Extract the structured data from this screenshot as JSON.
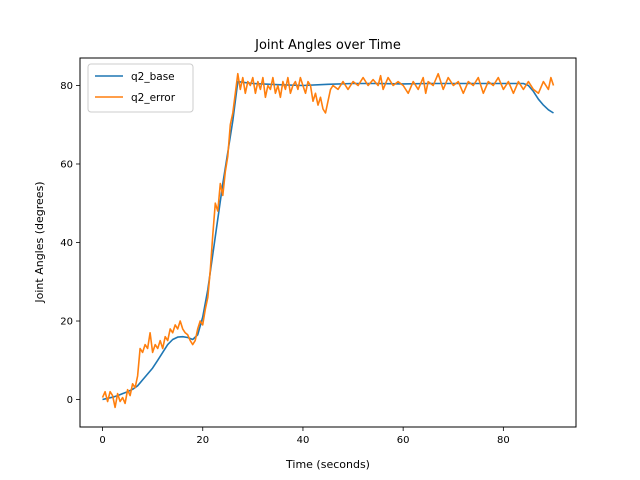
{
  "chart_data": {
    "type": "line",
    "title": "Joint Angles over Time",
    "xlabel": "Time (seconds)",
    "ylabel": "Joint Angles (degrees)",
    "xlim": [
      -4.5,
      94.5
    ],
    "ylim": [
      -7,
      87
    ],
    "xticks": [
      0,
      20,
      40,
      60,
      80
    ],
    "yticks": [
      0,
      20,
      40,
      60,
      80
    ],
    "grid": false,
    "legend_position": "top-left",
    "series": [
      {
        "name": "q2_base",
        "color": "#1f77b4",
        "points": [
          [
            0,
            0
          ],
          [
            1,
            0.3
          ],
          [
            2,
            0.6
          ],
          [
            3,
            1.0
          ],
          [
            4,
            1.5
          ],
          [
            5,
            2.0
          ],
          [
            6,
            2.6
          ],
          [
            7,
            3.5
          ],
          [
            8,
            5.0
          ],
          [
            9,
            6.5
          ],
          [
            10,
            8.0
          ],
          [
            11,
            10.0
          ],
          [
            12,
            12.0
          ],
          [
            13,
            14.0
          ],
          [
            14,
            15.3
          ],
          [
            15,
            15.9
          ],
          [
            16,
            16.0
          ],
          [
            17,
            15.8
          ],
          [
            18,
            15.3
          ],
          [
            19,
            16.5
          ],
          [
            20,
            21.0
          ],
          [
            21,
            28.0
          ],
          [
            22,
            37.0
          ],
          [
            23,
            46.0
          ],
          [
            24,
            55.0
          ],
          [
            25,
            63.0
          ],
          [
            26,
            71.0
          ],
          [
            27,
            81.0
          ],
          [
            28,
            80.8
          ],
          [
            30,
            80.5
          ],
          [
            35,
            80.2
          ],
          [
            40,
            80.0
          ],
          [
            45,
            80.3
          ],
          [
            50,
            80.5
          ],
          [
            55,
            80.5
          ],
          [
            60,
            80.4
          ],
          [
            65,
            80.5
          ],
          [
            70,
            80.5
          ],
          [
            75,
            80.5
          ],
          [
            80,
            80.5
          ],
          [
            84,
            80.5
          ],
          [
            85,
            80.0
          ],
          [
            86,
            78.5
          ],
          [
            87,
            76.5
          ],
          [
            88,
            75.0
          ],
          [
            89,
            73.8
          ],
          [
            90,
            73.0
          ]
        ]
      },
      {
        "name": "q2_error",
        "color": "#ff7f0e",
        "points": [
          [
            0,
            0.5
          ],
          [
            0.5,
            2
          ],
          [
            1,
            -0.5
          ],
          [
            1.5,
            2
          ],
          [
            2,
            1
          ],
          [
            2.5,
            -2
          ],
          [
            3,
            1.5
          ],
          [
            3.5,
            -0.5
          ],
          [
            4,
            0.5
          ],
          [
            4.5,
            -1
          ],
          [
            5,
            2.5
          ],
          [
            5.5,
            1
          ],
          [
            6,
            4
          ],
          [
            6.5,
            3
          ],
          [
            7,
            6
          ],
          [
            7.5,
            13
          ],
          [
            8,
            12
          ],
          [
            8.5,
            14
          ],
          [
            9,
            13
          ],
          [
            9.5,
            17
          ],
          [
            10,
            12
          ],
          [
            10.5,
            14
          ],
          [
            11,
            13
          ],
          [
            11.5,
            15
          ],
          [
            12,
            13
          ],
          [
            12.5,
            16
          ],
          [
            13,
            15
          ],
          [
            13.5,
            18
          ],
          [
            14,
            17
          ],
          [
            14.5,
            19
          ],
          [
            15,
            18
          ],
          [
            15.5,
            20
          ],
          [
            16,
            18
          ],
          [
            16.5,
            17
          ],
          [
            17,
            16.5
          ],
          [
            17.5,
            15
          ],
          [
            18,
            14
          ],
          [
            18.5,
            15
          ],
          [
            19,
            18
          ],
          [
            19.5,
            20
          ],
          [
            20,
            19
          ],
          [
            20.5,
            23
          ],
          [
            21,
            26
          ],
          [
            21.5,
            33
          ],
          [
            22,
            42
          ],
          [
            22.5,
            50
          ],
          [
            23,
            48
          ],
          [
            23.5,
            55
          ],
          [
            24,
            52
          ],
          [
            24.5,
            58
          ],
          [
            25,
            62
          ],
          [
            25.5,
            70
          ],
          [
            26,
            73
          ],
          [
            26.5,
            78
          ],
          [
            27,
            83
          ],
          [
            27.5,
            79
          ],
          [
            28,
            82
          ],
          [
            28.5,
            78
          ],
          [
            29,
            81
          ],
          [
            29.5,
            80
          ],
          [
            30,
            82
          ],
          [
            30.5,
            78
          ],
          [
            31,
            81
          ],
          [
            31.5,
            79
          ],
          [
            32,
            82
          ],
          [
            32.5,
            77
          ],
          [
            33,
            80
          ],
          [
            33.5,
            79
          ],
          [
            34,
            82
          ],
          [
            34.5,
            78
          ],
          [
            35,
            80
          ],
          [
            35.5,
            77
          ],
          [
            36,
            81
          ],
          [
            36.5,
            79
          ],
          [
            37,
            82
          ],
          [
            37.5,
            78
          ],
          [
            38,
            80
          ],
          [
            38.5,
            81
          ],
          [
            39,
            79
          ],
          [
            39.5,
            82
          ],
          [
            40,
            80
          ],
          [
            40.5,
            78
          ],
          [
            41,
            81
          ],
          [
            41.5,
            80
          ],
          [
            42,
            76
          ],
          [
            42.5,
            78
          ],
          [
            43,
            75
          ],
          [
            43.5,
            77
          ],
          [
            44,
            74
          ],
          [
            44.5,
            73
          ],
          [
            45,
            76
          ],
          [
            45.5,
            79
          ],
          [
            46,
            80
          ],
          [
            47,
            79
          ],
          [
            48,
            81
          ],
          [
            49,
            79
          ],
          [
            50,
            81
          ],
          [
            51,
            80
          ],
          [
            52,
            82
          ],
          [
            53,
            80
          ],
          [
            54,
            81.5
          ],
          [
            55,
            80
          ],
          [
            55.5,
            82.5
          ],
          [
            56,
            79
          ],
          [
            57,
            82
          ],
          [
            58,
            80
          ],
          [
            59,
            81
          ],
          [
            60,
            80
          ],
          [
            61,
            78
          ],
          [
            62,
            81
          ],
          [
            63,
            79
          ],
          [
            64,
            82
          ],
          [
            64.5,
            78
          ],
          [
            65,
            81
          ],
          [
            66,
            80
          ],
          [
            67,
            83
          ],
          [
            68,
            79
          ],
          [
            69,
            82
          ],
          [
            70,
            80
          ],
          [
            71,
            81
          ],
          [
            72,
            78
          ],
          [
            73,
            81
          ],
          [
            74,
            80
          ],
          [
            75,
            82
          ],
          [
            76,
            78
          ],
          [
            77,
            81
          ],
          [
            78,
            80
          ],
          [
            79,
            82
          ],
          [
            80,
            79
          ],
          [
            81,
            81
          ],
          [
            82,
            78
          ],
          [
            83,
            81
          ],
          [
            84,
            79
          ],
          [
            85,
            81
          ],
          [
            86,
            79
          ],
          [
            87,
            78
          ],
          [
            88,
            81
          ],
          [
            89,
            79
          ],
          [
            89.5,
            82
          ],
          [
            90,
            80
          ]
        ]
      }
    ]
  }
}
